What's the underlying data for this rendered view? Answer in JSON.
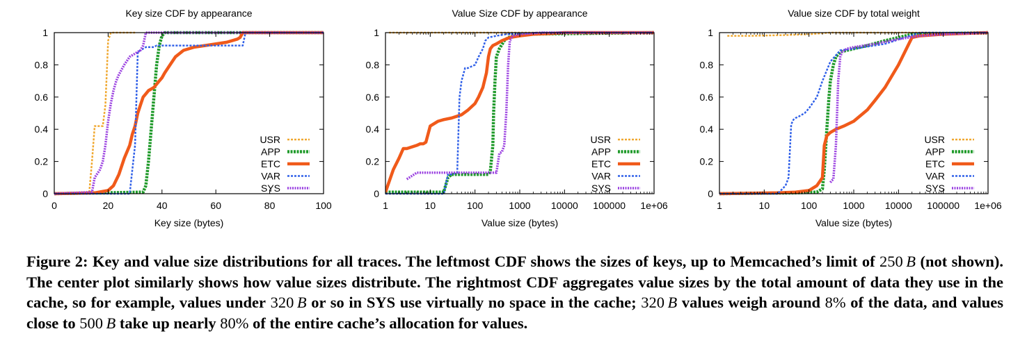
{
  "figure": {
    "caption": {
      "label": "Figure 2:",
      "s1": "Key and value size distributions for all traces. The leftmost CDF shows the sizes of keys, up to Memcached’s limit of",
      "v1": "250",
      "unit": "B",
      "s2": "(not shown). The center plot similarly shows how value sizes distribute. The rightmost CDF aggregates value sizes by the total amount of data they use in the cache, so for example, values under",
      "v2": "320",
      "s3": "or so in",
      "sys": "SYS",
      "s4": "use virtually no space in the cache;",
      "v3": "320",
      "s5": "values weigh around",
      "p1": "8%",
      "s6": "of the data, and values close to",
      "v4": "500",
      "s7": "take up nearly",
      "p2": "80%",
      "s8": "of the entire cache’s allocation for values."
    }
  },
  "chart_data": [
    {
      "type": "line",
      "title": "Key size CDF by appearance",
      "xlabel": "Key size (bytes)",
      "ylabel": "",
      "xscale": "linear",
      "xlim": [
        0,
        100
      ],
      "ylim": [
        0,
        1
      ],
      "xticks": [
        0,
        20,
        40,
        60,
        80,
        100
      ],
      "xtick_labels": [
        "0",
        "20",
        "40",
        "60",
        "80",
        "100"
      ],
      "yticks": [
        0,
        0.2,
        0.4,
        0.6,
        0.8,
        1
      ],
      "ytick_labels": [
        "0",
        "0.2",
        "0.4",
        "0.6",
        "0.8",
        "1"
      ],
      "legend_position": "bottom-right",
      "series": [
        {
          "name": "USR",
          "color": "#f0a830",
          "dash": "3,2",
          "width": 2.5,
          "x": [
            0,
            13,
            14,
            15,
            16,
            17,
            18,
            19,
            20,
            21,
            30
          ],
          "y": [
            0,
            0.01,
            0.2,
            0.42,
            0.42,
            0.42,
            0.42,
            0.55,
            0.95,
            1,
            1
          ]
        },
        {
          "name": "APP",
          "color": "#1f9a2a",
          "dash": "3,1.5",
          "width": 4.5,
          "x": [
            0,
            33,
            34,
            35,
            36,
            37,
            38,
            39,
            40,
            41,
            43,
            100
          ],
          "y": [
            0,
            0.01,
            0.05,
            0.2,
            0.4,
            0.6,
            0.8,
            0.92,
            0.98,
            1,
            1,
            1
          ]
        },
        {
          "name": "ETC",
          "color": "#f05a1a",
          "dash": "",
          "width": 4.5,
          "x": [
            0,
            15,
            20,
            22,
            24,
            26,
            28,
            29,
            30,
            31,
            32,
            33,
            34,
            35,
            37,
            38,
            39,
            40,
            41,
            43,
            45,
            48,
            52,
            56,
            60,
            64,
            66,
            68,
            69,
            70,
            100
          ],
          "y": [
            0,
            0.005,
            0.02,
            0.05,
            0.12,
            0.22,
            0.3,
            0.37,
            0.42,
            0.5,
            0.55,
            0.6,
            0.62,
            0.64,
            0.66,
            0.68,
            0.7,
            0.72,
            0.75,
            0.8,
            0.85,
            0.89,
            0.91,
            0.92,
            0.93,
            0.94,
            0.95,
            0.96,
            0.97,
            1,
            1
          ]
        },
        {
          "name": "VAR",
          "color": "#3060e8",
          "dash": "3,2",
          "width": 2.5,
          "x": [
            0,
            28,
            29,
            30,
            31,
            32,
            33,
            34,
            37,
            38,
            70,
            71,
            100
          ],
          "y": [
            0,
            0,
            0.15,
            0.3,
            0.88,
            0.89,
            0.9,
            0.91,
            0.91,
            0.92,
            0.92,
            1,
            1
          ]
        },
        {
          "name": "SYS",
          "color": "#9a40e0",
          "dash": "2,1.5",
          "width": 3.5,
          "x": [
            0,
            14,
            15,
            17,
            18,
            19,
            20,
            21,
            22,
            23,
            24,
            26,
            28,
            30,
            32,
            33,
            34,
            100
          ],
          "y": [
            0,
            0.01,
            0.1,
            0.15,
            0.2,
            0.3,
            0.45,
            0.56,
            0.64,
            0.7,
            0.74,
            0.8,
            0.85,
            0.87,
            0.89,
            0.92,
            1,
            1
          ]
        }
      ]
    },
    {
      "type": "line",
      "title": "Value Size CDF by appearance",
      "xlabel": "Value size (bytes)",
      "ylabel": "",
      "xscale": "log",
      "xlim": [
        1,
        1000000
      ],
      "ylim": [
        0,
        1
      ],
      "xticks": [
        1,
        10,
        100,
        1000,
        10000,
        100000,
        1000000
      ],
      "xtick_labels": [
        "1",
        "10",
        "100",
        "1000",
        "10000",
        "100000",
        "1e+06"
      ],
      "yticks": [
        0,
        0.2,
        0.4,
        0.6,
        0.8,
        1
      ],
      "ytick_labels": [
        "0",
        "0.2",
        "0.4",
        "0.6",
        "0.8",
        "1"
      ],
      "legend_position": "bottom-right",
      "series": [
        {
          "name": "USR",
          "color": "#f0a830",
          "dash": "3,2",
          "width": 2.5,
          "x": [
            1.2,
            2,
            10,
            100,
            1000,
            1000000
          ],
          "y": [
            1,
            1,
            1,
            1,
            1,
            1
          ]
        },
        {
          "name": "APP",
          "color": "#1f9a2a",
          "dash": "3,1.5",
          "width": 4.5,
          "x": [
            1,
            10,
            20,
            22,
            25,
            30,
            50,
            100,
            150,
            200,
            220,
            250,
            260,
            280,
            300,
            350,
            450,
            550,
            1000,
            1000000
          ],
          "y": [
            0.01,
            0.01,
            0.01,
            0.05,
            0.1,
            0.12,
            0.12,
            0.12,
            0.12,
            0.12,
            0.14,
            0.3,
            0.5,
            0.7,
            0.85,
            0.9,
            0.95,
            0.97,
            0.99,
            1
          ]
        },
        {
          "name": "ETC",
          "color": "#f05a1a",
          "dash": "",
          "width": 4.5,
          "x": [
            1,
            1.5,
            2,
            2.5,
            3,
            5,
            6,
            7,
            8,
            10,
            15,
            20,
            30,
            50,
            70,
            100,
            120,
            150,
            180,
            200,
            220,
            250,
            300,
            400,
            600,
            1000,
            2000,
            5000,
            10000,
            100000,
            1000000
          ],
          "y": [
            0.01,
            0.15,
            0.22,
            0.28,
            0.28,
            0.3,
            0.31,
            0.31,
            0.32,
            0.42,
            0.45,
            0.46,
            0.47,
            0.49,
            0.52,
            0.56,
            0.6,
            0.66,
            0.75,
            0.85,
            0.9,
            0.92,
            0.93,
            0.95,
            0.97,
            0.98,
            0.99,
            0.995,
            1,
            1,
            1
          ]
        },
        {
          "name": "VAR",
          "color": "#3060e8",
          "dash": "3,2",
          "width": 2.5,
          "x": [
            1,
            10,
            20,
            25,
            30,
            40,
            45,
            50,
            60,
            70,
            100,
            120,
            150,
            170,
            200,
            300,
            500,
            1000,
            3000,
            1000000
          ],
          "y": [
            0,
            0,
            0,
            0.12,
            0.12,
            0.13,
            0.6,
            0.7,
            0.78,
            0.78,
            0.8,
            0.85,
            0.9,
            0.95,
            0.97,
            0.98,
            0.99,
            0.995,
            1,
            1
          ]
        },
        {
          "name": "SYS",
          "color": "#9a40e0",
          "dash": "2,1.5",
          "width": 3.5,
          "x": [
            3,
            5,
            10,
            30,
            100,
            200,
            300,
            350,
            400,
            450,
            500,
            550,
            600,
            700,
            1000,
            3000,
            1000000
          ],
          "y": [
            0.09,
            0.13,
            0.13,
            0.13,
            0.13,
            0.13,
            0.13,
            0.25,
            0.26,
            0.3,
            0.5,
            0.8,
            0.95,
            0.98,
            0.99,
            1,
            1
          ]
        }
      ]
    },
    {
      "type": "line",
      "title": "Value size CDF by total weight",
      "xlabel": "Value size (bytes)",
      "ylabel": "",
      "xscale": "log",
      "xlim": [
        1,
        1000000
      ],
      "ylim": [
        0,
        1
      ],
      "xticks": [
        1,
        10,
        100,
        1000,
        10000,
        100000,
        1000000
      ],
      "xtick_labels": [
        "1",
        "10",
        "100",
        "1000",
        "10000",
        "100000",
        "1e+06"
      ],
      "yticks": [
        0,
        0.2,
        0.4,
        0.6,
        0.8,
        1
      ],
      "ytick_labels": [
        "0",
        "0.2",
        "0.4",
        "0.6",
        "0.8",
        "1"
      ],
      "legend_position": "bottom-right",
      "series": [
        {
          "name": "USR",
          "color": "#f0a830",
          "dash": "3,2",
          "width": 2.5,
          "x": [
            1.5,
            5,
            30,
            100,
            300,
            1000,
            1000000
          ],
          "y": [
            0.98,
            0.98,
            0.985,
            0.99,
            1,
            1,
            1
          ]
        },
        {
          "name": "APP",
          "color": "#1f9a2a",
          "dash": "3,1.5",
          "width": 4.5,
          "x": [
            1,
            50,
            150,
            200,
            220,
            250,
            280,
            300,
            350,
            400,
            500,
            1000,
            2000,
            5000,
            10000,
            20000,
            1000000
          ],
          "y": [
            0,
            0.005,
            0.01,
            0.03,
            0.15,
            0.4,
            0.6,
            0.7,
            0.8,
            0.85,
            0.88,
            0.9,
            0.92,
            0.95,
            0.97,
            0.99,
            1
          ]
        },
        {
          "name": "ETC",
          "color": "#f05a1a",
          "dash": "",
          "width": 4.5,
          "x": [
            1,
            20,
            50,
            100,
            150,
            200,
            220,
            250,
            300,
            400,
            600,
            1000,
            2000,
            3000,
            5000,
            10000,
            15000,
            20000,
            30000,
            100000,
            1000000
          ],
          "y": [
            0,
            0.005,
            0.01,
            0.02,
            0.05,
            0.1,
            0.3,
            0.36,
            0.38,
            0.4,
            0.42,
            0.45,
            0.52,
            0.58,
            0.66,
            0.8,
            0.9,
            0.97,
            0.98,
            0.99,
            1
          ]
        },
        {
          "name": "VAR",
          "color": "#3060e8",
          "dash": "3,2",
          "width": 2.5,
          "x": [
            1,
            20,
            30,
            35,
            40,
            45,
            50,
            60,
            80,
            100,
            150,
            200,
            300,
            500,
            1000,
            5000,
            30000,
            1000000
          ],
          "y": [
            0,
            0,
            0.05,
            0.1,
            0.43,
            0.46,
            0.47,
            0.48,
            0.5,
            0.53,
            0.6,
            0.7,
            0.82,
            0.89,
            0.9,
            0.93,
            1,
            1
          ]
        },
        {
          "name": "SYS",
          "color": "#9a40e0",
          "dash": "2,1.5",
          "width": 3.5,
          "x": [
            300,
            320,
            350,
            400,
            450,
            500,
            550,
            700,
            1000,
            3000,
            10000,
            30000,
            100000,
            1000000
          ],
          "y": [
            0.07,
            0.08,
            0.09,
            0.3,
            0.7,
            0.85,
            0.88,
            0.9,
            0.91,
            0.93,
            0.96,
            0.98,
            0.99,
            1
          ]
        }
      ]
    }
  ]
}
